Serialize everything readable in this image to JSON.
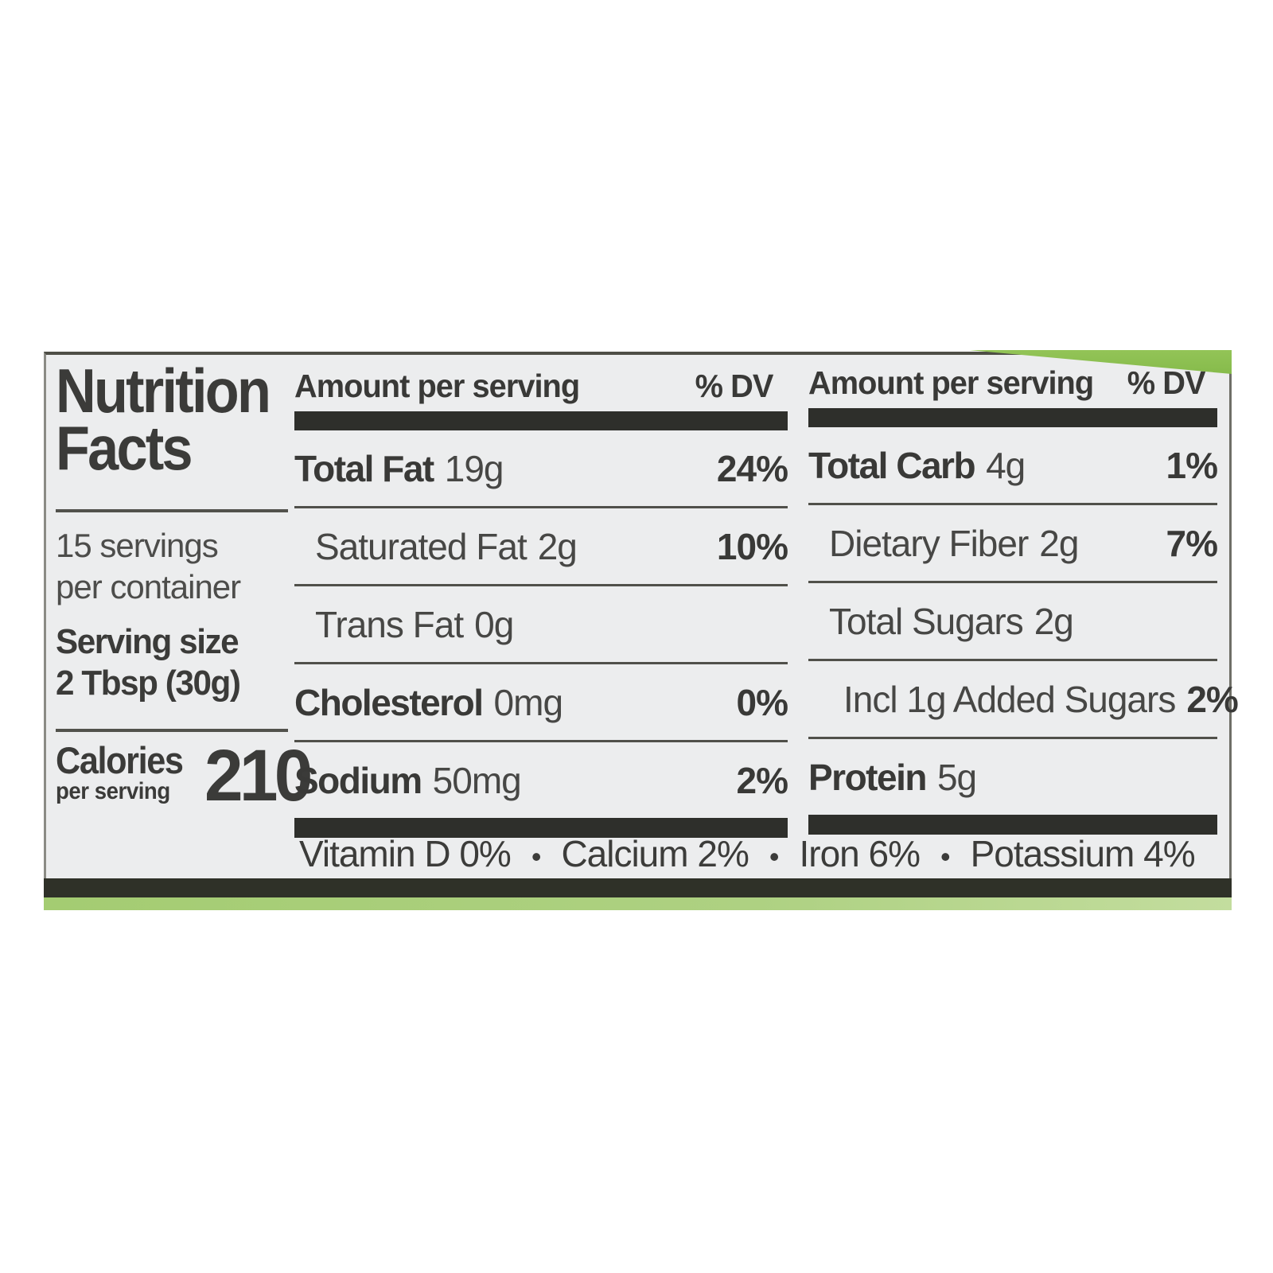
{
  "label": {
    "title_line1": "Nutrition",
    "title_line2": "Facts",
    "servings_line1": "15 servings",
    "servings_line2": "per container",
    "serving_size_line1": "Serving size",
    "serving_size_line2": "2 Tbsp (30g)",
    "calories_word": "Calories",
    "calories_sub": "per serving",
    "calories_value": "210",
    "col1": {
      "header": "Amount per serving",
      "dv_header": "% DV",
      "rows": [
        {
          "name": "Total Fat",
          "amount": "19g",
          "dv": "24%"
        },
        {
          "name": "Saturated Fat",
          "amount": "2g",
          "dv": "10%"
        },
        {
          "name": "Trans Fat",
          "amount": "0g",
          "dv": ""
        },
        {
          "name": "Cholesterol",
          "amount": "0mg",
          "dv": "0%"
        },
        {
          "name": "Sodium",
          "amount": "50mg",
          "dv": "2%"
        }
      ]
    },
    "col2": {
      "header": "Amount per serving",
      "dv_header": "% DV",
      "rows": [
        {
          "name": "Total Carb",
          "amount": "4g",
          "dv": "1%"
        },
        {
          "name": "Dietary Fiber",
          "amount": "2g",
          "dv": "7%"
        },
        {
          "name": "Total Sugars",
          "amount": "2g",
          "dv": ""
        },
        {
          "name": "Incl 1g Added Sugars",
          "amount": "",
          "dv": "2%"
        },
        {
          "name": "Protein",
          "amount": "5g",
          "dv": ""
        }
      ]
    },
    "footer": {
      "separator": "•",
      "items": [
        "Vitamin D 0%",
        "Calcium 2%",
        "Iron 6%",
        "Potassium 4%"
      ]
    },
    "colors": {
      "label_background": "#ecedee",
      "text_dark": "#393937",
      "bar_black": "#2e2f2b",
      "package_green": "#8cc152",
      "bottom_green": "#a4cc72",
      "bottom_dark_strip": "#2f3128"
    }
  }
}
